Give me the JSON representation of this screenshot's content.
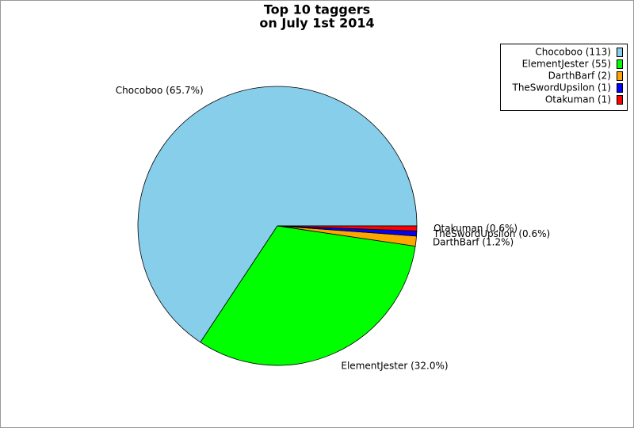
{
  "chart_data": {
    "type": "pie",
    "title": "Top 10 taggers",
    "subtitle": "on July 1st 2014",
    "values": [
      113,
      55,
      2,
      1,
      1
    ],
    "slice_labels": [
      "Chocoboo (65.7%)",
      "ElementJester (32.0%)",
      "DarthBarf (1.2%)",
      "TheSwordUpsilon (0.6%)",
      "Otakuman (0.6%)"
    ],
    "legend_labels": [
      "Chocoboo (113)",
      "ElementJester (55)",
      "DarthBarf (2)",
      "TheSwordUpsilon (1)",
      "Otakuman (1)"
    ],
    "colors": [
      "#87ceeb",
      "#00ff00",
      "#ffa500",
      "#0000ff",
      "#ff0000"
    ],
    "legend": "top-right"
  }
}
